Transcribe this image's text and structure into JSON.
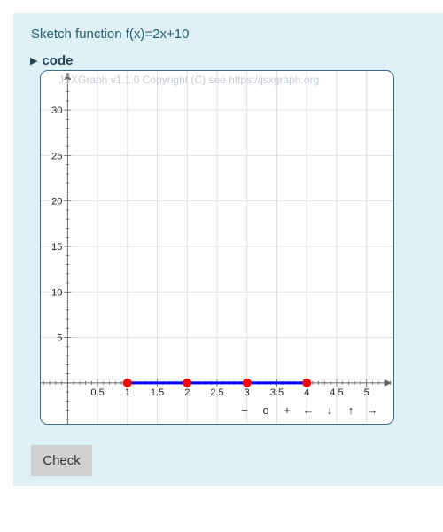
{
  "question": {
    "text": "Sketch function f(x)=2x+10"
  },
  "code_toggle": {
    "label": "code"
  },
  "board": {
    "copyright": "JSXGraph v1.1.0 Copyright (C) see https://jsxgraph.org",
    "navigation": [
      "−",
      "o",
      "+",
      "←",
      "↓",
      "↑",
      "→"
    ],
    "colors": {
      "curve": "#0000ff",
      "points": "#ff0000",
      "grid": "#e0e0e0",
      "axis": "#666666",
      "border": "#3b6d8c"
    }
  },
  "chart_data": {
    "type": "line",
    "title": "",
    "xlabel": "",
    "ylabel": "",
    "xlim": [
      -0.45,
      5.45
    ],
    "ylim": [
      -4.5,
      34.3
    ],
    "x_ticks": [
      0.5,
      1,
      1.5,
      2,
      2.5,
      3,
      3.5,
      4,
      4.5,
      5
    ],
    "x_tick_labels": [
      "0.5",
      "1",
      "1.5",
      "2",
      "2.5",
      "3",
      "3.5",
      "4",
      "4.5",
      "5"
    ],
    "y_ticks": [
      5,
      10,
      15,
      20,
      25,
      30
    ],
    "y_tick_labels": [
      "5",
      "10",
      "15",
      "20",
      "25",
      "30"
    ],
    "grid": true,
    "series": [
      {
        "x": [
          1,
          2,
          3,
          4
        ],
        "y": [
          0,
          0,
          0,
          0
        ]
      }
    ]
  },
  "check_button": {
    "label": "Check"
  }
}
